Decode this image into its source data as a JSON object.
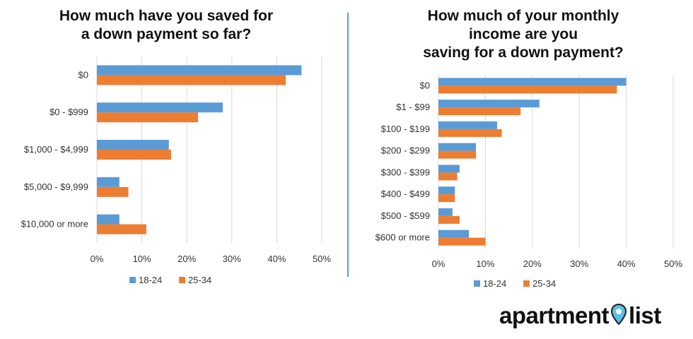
{
  "colors": {
    "series_a": "#5b9bd5",
    "series_b": "#ed7d31",
    "grid": "#d9d9d9",
    "divider": "#5b9bd5",
    "pin": "#5bc0e8"
  },
  "brand": {
    "name_part1": "apartment",
    "name_part2": "list",
    "icon": "map-pin-icon"
  },
  "chart_data": [
    {
      "type": "bar",
      "orientation": "horizontal",
      "title": "How much have you saved for\na down payment so far?",
      "categories": [
        "$0",
        "$0 - $999",
        "$1,000 - $4,999",
        "$5,000 - $9,999",
        "$10,000 or more"
      ],
      "series": [
        {
          "name": "18-24",
          "values": [
            45.5,
            28,
            16,
            5,
            5
          ]
        },
        {
          "name": "25-34",
          "values": [
            42,
            22.5,
            16.5,
            7,
            11
          ]
        }
      ],
      "xlim": [
        0,
        50
      ],
      "xticks": [
        "0%",
        "10%",
        "20%",
        "30%",
        "40%",
        "50%"
      ],
      "grid": true,
      "legend": "bottom-center"
    },
    {
      "type": "bar",
      "orientation": "horizontal",
      "title": "How much of your monthly\nincome are you\nsaving for a down payment?",
      "categories": [
        "$0",
        "$1 - $99",
        "$100 - $199",
        "$200 - $299",
        "$300 - $399",
        "$400 - $499",
        "$500 - $599",
        "$600 or more"
      ],
      "series": [
        {
          "name": "18-24",
          "values": [
            40,
            21.5,
            12.5,
            8,
            4.5,
            3.5,
            3,
            6.5
          ]
        },
        {
          "name": "25-34",
          "values": [
            38,
            17.5,
            13.5,
            8,
            4,
            3.5,
            4.5,
            10
          ]
        }
      ],
      "xlim": [
        0,
        50
      ],
      "xticks": [
        "0%",
        "10%",
        "20%",
        "30%",
        "40%",
        "50%"
      ],
      "grid": true,
      "legend": "bottom-center"
    }
  ]
}
